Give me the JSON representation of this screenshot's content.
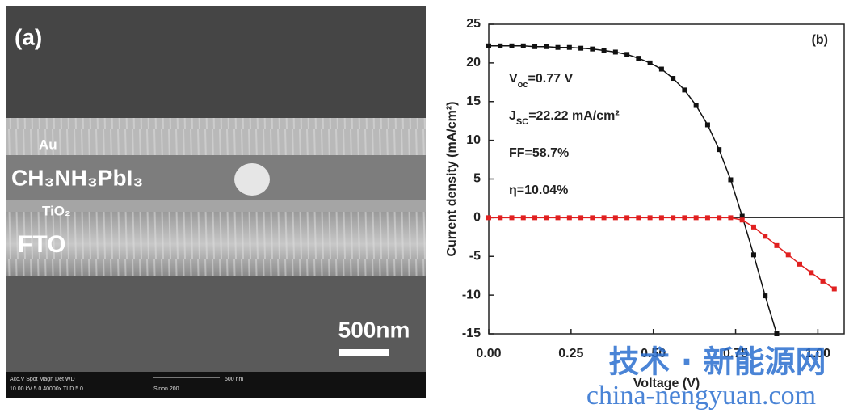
{
  "sem_image": {
    "panel_label": "(a)",
    "layers": [
      "Au",
      "CH₃NH₃PbI₃",
      "TiO₂",
      "FTO"
    ],
    "scale_bar": "500nm",
    "footer": [
      "Acc.V  Spot  Magn   Det  WD",
      "10.00 kV 5.0  40000x  TLD 5.0",
      "500 nm",
      "Sinon 200"
    ]
  },
  "chart_data": {
    "type": "line",
    "panel_label": "(b)",
    "x_label": "Voltage (V)",
    "y_label": "Current density (mA/cm²)",
    "annotations": [
      [
        "V",
        "oc",
        "=0.77 V"
      ],
      [
        "J",
        "SC",
        "=22.22  mA/cm²"
      ],
      [
        "FF=58.7%"
      ],
      [
        "η=10.04%"
      ]
    ],
    "xlim": [
      0,
      1.08
    ],
    "xticks": [
      {
        "value": 0,
        "label": "0.00"
      },
      {
        "value": 0.25,
        "label": "0.25"
      },
      {
        "value": 0.5,
        "label": "0.50"
      },
      {
        "value": 0.75,
        "label": "0.75"
      },
      {
        "value": 1,
        "label": "1.00"
      }
    ],
    "ylim": [
      -15,
      25
    ],
    "yticks": [
      -15,
      -10,
      -5,
      0,
      5,
      10,
      15,
      20,
      25
    ],
    "series": [
      {
        "color": "#111111",
        "x": [
          0,
          0.035,
          0.07,
          0.105,
          0.14,
          0.175,
          0.21,
          0.245,
          0.28,
          0.315,
          0.35,
          0.385,
          0.42,
          0.455,
          0.49,
          0.525,
          0.56,
          0.595,
          0.63,
          0.665,
          0.7,
          0.735,
          0.77,
          0.805,
          0.84,
          0.875
        ],
        "values": [
          22.2,
          22.2,
          22.2,
          22.2,
          22.1,
          22.1,
          22.0,
          22.0,
          21.9,
          21.8,
          21.6,
          21.4,
          21.1,
          20.6,
          20.0,
          19.2,
          18.0,
          16.5,
          14.5,
          12.0,
          8.8,
          4.9,
          0.2,
          -4.8,
          -10.1,
          -15
        ]
      },
      {
        "color": "#e02020",
        "x": [
          0,
          0.035,
          0.07,
          0.105,
          0.14,
          0.175,
          0.21,
          0.245,
          0.28,
          0.315,
          0.35,
          0.385,
          0.42,
          0.455,
          0.49,
          0.525,
          0.56,
          0.595,
          0.63,
          0.665,
          0.7,
          0.735,
          0.77,
          0.805,
          0.84,
          0.875,
          0.91,
          0.945,
          0.98,
          1.015,
          1.05
        ],
        "values": [
          0,
          0,
          0,
          0,
          0,
          0,
          0,
          0,
          0,
          0,
          0,
          0,
          0,
          0,
          0,
          0,
          0,
          0,
          0,
          0,
          0,
          0,
          -0.3,
          -1.2,
          -2.4,
          -3.6,
          -4.8,
          -6.0,
          -7.1,
          -8.2,
          -9.2
        ]
      }
    ]
  },
  "watermark": {
    "line1": "技术 · 新能源网",
    "line2": "china-nengyuan.com"
  }
}
